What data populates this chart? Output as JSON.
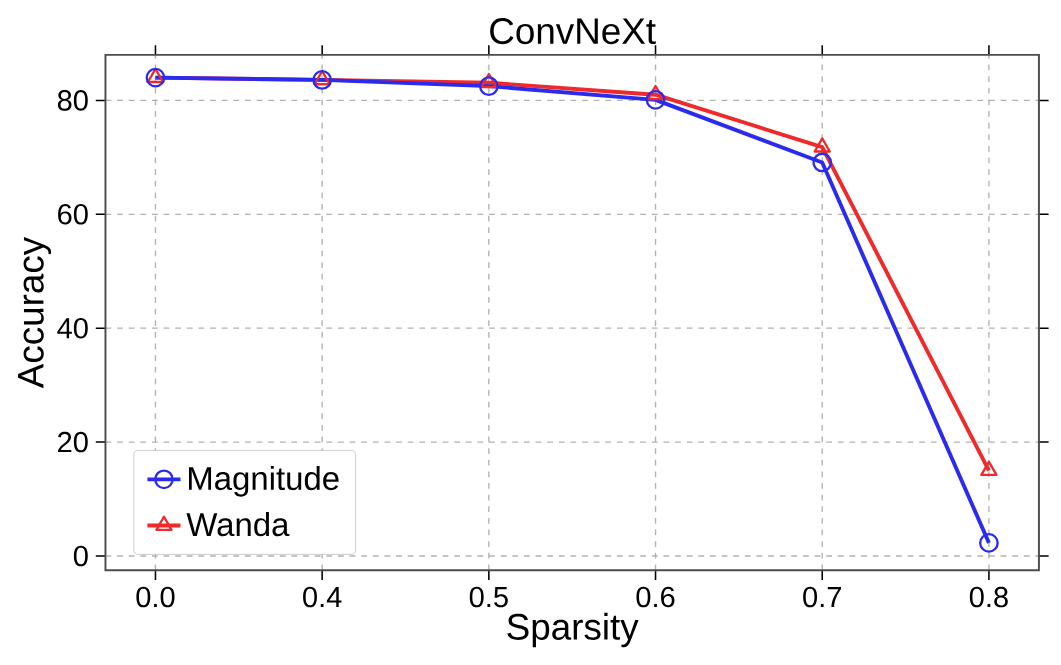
{
  "chart_data": {
    "type": "line",
    "title": "ConvNeXt",
    "xlabel": "Sparsity",
    "ylabel": "Accuracy",
    "categories": [
      "0.0",
      "0.4",
      "0.5",
      "0.6",
      "0.7",
      "0.8"
    ],
    "series": [
      {
        "name": "Magnitude",
        "color": "#2b2bf0",
        "marker": "circle",
        "values": [
          84,
          83.6,
          82.5,
          80.1,
          69.1,
          2.3
        ]
      },
      {
        "name": "Wanda",
        "color": "#ee2a2a",
        "marker": "triangle",
        "values": [
          84,
          83.6,
          83.1,
          81,
          71.8,
          15
        ]
      }
    ],
    "ylim": [
      -2.5,
      88
    ],
    "yticks": [
      0,
      20,
      40,
      60,
      80
    ],
    "grid": true,
    "legend": "bottom left",
    "line_style": "solid"
  }
}
